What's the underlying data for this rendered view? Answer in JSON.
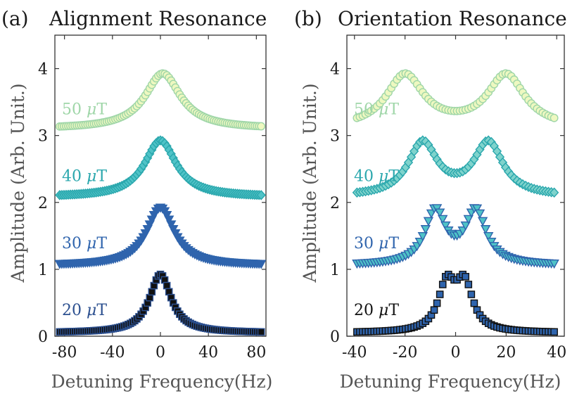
{
  "ylabel": "Amplitude (Arb. Unit.)",
  "chart_data": [
    {
      "type": "scatter",
      "panel": "(a)",
      "title": "Alignment Resonance",
      "xlabel": "Detuning Frequency(Hz)",
      "xlim": [
        -88,
        88
      ],
      "ylim": [
        0,
        4.5
      ],
      "xticks": [
        "-80",
        "-40",
        "0",
        "40",
        "80"
      ],
      "yticks": [
        "0",
        "1",
        "2",
        "3",
        "4"
      ],
      "series": [
        {
          "name": "20 μT",
          "label_value": "20",
          "label_unit": "μT",
          "offset": 0,
          "peaks": [
            0
          ],
          "width": 11,
          "base": 0.05,
          "color": "#111111",
          "edge": "#2b4f8f",
          "marker": "square"
        },
        {
          "name": "30 μT",
          "label_value": "30",
          "label_unit": "μT",
          "offset": 1,
          "peaks": [
            0
          ],
          "width": 14,
          "base": 0.06,
          "color": "#2f64ad",
          "edge": "#2f64ad",
          "marker": "triangle-down"
        },
        {
          "name": "40 μT",
          "label_value": "40",
          "label_unit": "μT",
          "offset": 2,
          "peaks": [
            0
          ],
          "width": 16,
          "base": 0.08,
          "color": "#4fc3c7",
          "edge": "#2aa7ad",
          "marker": "diamond"
        },
        {
          "name": "50 μT",
          "label_value": "50",
          "label_unit": "μT",
          "offset": 3,
          "peaks": [
            2
          ],
          "width": 18,
          "base": 0.1,
          "color": "#eef8c0",
          "edge": "#9fd6a8",
          "marker": "circle"
        }
      ]
    },
    {
      "type": "scatter",
      "panel": "(b)",
      "title": "Orientation Resonance",
      "xlabel": "Detuning Frequency(Hz)",
      "xlim": [
        -43,
        43
      ],
      "ylim": [
        0,
        4.5
      ],
      "xticks": [
        "-40",
        "-20",
        "0",
        "20",
        "40"
      ],
      "yticks": [
        "0",
        "1",
        "2",
        "3",
        "4"
      ],
      "series": [
        {
          "name": "20 μT",
          "label_value": "20",
          "label_unit": "μT",
          "offset": 0,
          "peaks": [
            -3.5,
            3.5
          ],
          "width": 4,
          "base": 0.05,
          "color": "#2f64ad",
          "edge": "#111111",
          "marker": "square"
        },
        {
          "name": "30 μT",
          "label_value": "30",
          "label_unit": "μT",
          "offset": 1,
          "peaks": [
            -8,
            8
          ],
          "width": 5,
          "base": 0.06,
          "color": "#4fc3c7",
          "edge": "#2f64ad",
          "marker": "triangle-down"
        },
        {
          "name": "40 μT",
          "label_value": "40",
          "label_unit": "μT",
          "offset": 2,
          "peaks": [
            -13,
            13
          ],
          "width": 7,
          "base": 0.08,
          "color": "#7fd3cc",
          "edge": "#2aa7ad",
          "marker": "diamond"
        },
        {
          "name": "50 μT",
          "label_value": "50",
          "label_unit": "μT",
          "offset": 3,
          "peaks": [
            -20,
            20
          ],
          "width": 9,
          "base": 0.1,
          "color": "#eef8c0",
          "edge": "#9fd6a8",
          "marker": "circle"
        }
      ]
    }
  ]
}
